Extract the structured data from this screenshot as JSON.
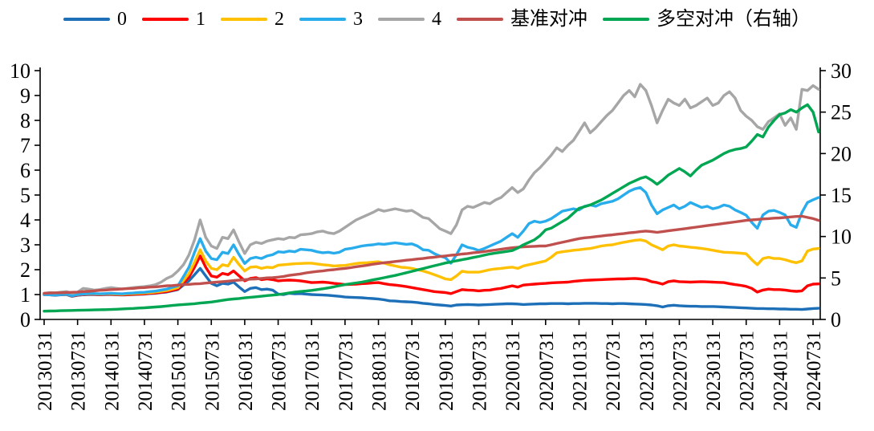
{
  "page": {
    "background": "#FFFFFF"
  },
  "legend": {
    "items": [
      {
        "label": "0",
        "color": "#1D70B8"
      },
      {
        "label": "1",
        "color": "#FF0000"
      },
      {
        "label": "2",
        "color": "#FFC000"
      },
      {
        "label": "3",
        "color": "#29ACEC"
      },
      {
        "label": "4",
        "color": "#A6A6A6"
      },
      {
        "label": "基准对冲",
        "color": "#C0504D"
      },
      {
        "label": "多空对冲（右轴）",
        "color": "#00A651"
      }
    ]
  },
  "chart_data": {
    "type": "line",
    "title": "",
    "xlabel": "",
    "ylabel": "",
    "grid": false,
    "legend_position": "top-center",
    "x_start": "2013-01",
    "x_end": "2024-08",
    "x_frequency": "monthly",
    "x_tick_labels": [
      "20130131",
      "20130731",
      "20140131",
      "20140731",
      "20150131",
      "20150731",
      "20160131",
      "20160731",
      "20170131",
      "20170731",
      "20180131",
      "20180731",
      "20190131",
      "20190731",
      "20200131",
      "20200731",
      "20210131",
      "20210731",
      "20220131",
      "20220731",
      "20230131",
      "20230731",
      "20240131",
      "20240731"
    ],
    "left_axis": {
      "min": 0,
      "max": 10,
      "ticks": [
        0,
        1,
        2,
        3,
        4,
        5,
        6,
        7,
        8,
        9,
        10
      ]
    },
    "right_axis": {
      "min": 0,
      "max": 30,
      "ticks": [
        0,
        5,
        10,
        15,
        20,
        25,
        30
      ]
    },
    "series": [
      {
        "name": "0",
        "axis": "left",
        "color": "#1D70B8",
        "values": [
          1.0,
          0.99,
          0.97,
          0.99,
          1.0,
          0.93,
          0.97,
          0.99,
          1.0,
          1.0,
          0.99,
          1.0,
          1.0,
          0.99,
          0.98,
          0.99,
          1.0,
          1.01,
          1.02,
          1.04,
          1.05,
          1.08,
          1.1,
          1.15,
          1.2,
          1.38,
          1.55,
          1.8,
          2.05,
          1.75,
          1.45,
          1.35,
          1.45,
          1.42,
          1.5,
          1.3,
          1.12,
          1.25,
          1.28,
          1.2,
          1.22,
          1.18,
          1.02,
          1.0,
          1.05,
          1.03,
          1.04,
          1.02,
          1.0,
          0.99,
          0.98,
          0.97,
          0.95,
          0.93,
          0.9,
          0.89,
          0.88,
          0.87,
          0.85,
          0.84,
          0.82,
          0.79,
          0.75,
          0.74,
          0.72,
          0.71,
          0.7,
          0.68,
          0.65,
          0.63,
          0.6,
          0.58,
          0.56,
          0.54,
          0.58,
          0.59,
          0.6,
          0.59,
          0.58,
          0.59,
          0.6,
          0.61,
          0.62,
          0.63,
          0.63,
          0.62,
          0.6,
          0.61,
          0.62,
          0.63,
          0.63,
          0.64,
          0.64,
          0.64,
          0.63,
          0.64,
          0.64,
          0.65,
          0.65,
          0.65,
          0.64,
          0.64,
          0.63,
          0.64,
          0.64,
          0.63,
          0.62,
          0.61,
          0.6,
          0.58,
          0.55,
          0.5,
          0.55,
          0.57,
          0.55,
          0.54,
          0.53,
          0.53,
          0.52,
          0.52,
          0.52,
          0.51,
          0.5,
          0.49,
          0.48,
          0.47,
          0.46,
          0.45,
          0.44,
          0.44,
          0.43,
          0.43,
          0.42,
          0.42,
          0.41,
          0.41,
          0.4,
          0.42,
          0.44,
          0.45
        ]
      },
      {
        "name": "1",
        "axis": "left",
        "color": "#FF0000",
        "values": [
          1.0,
          0.99,
          0.98,
          1.0,
          1.01,
          0.94,
          0.98,
          1.0,
          1.02,
          1.01,
          1.0,
          1.01,
          1.01,
          1.0,
          0.99,
          1.0,
          1.01,
          1.02,
          1.03,
          1.05,
          1.06,
          1.09,
          1.12,
          1.17,
          1.22,
          1.46,
          1.7,
          2.1,
          2.55,
          2.1,
          1.75,
          1.7,
          1.85,
          1.8,
          1.95,
          1.75,
          1.55,
          1.65,
          1.68,
          1.6,
          1.63,
          1.6,
          1.55,
          1.57,
          1.58,
          1.57,
          1.55,
          1.52,
          1.48,
          1.49,
          1.5,
          1.48,
          1.45,
          1.43,
          1.4,
          1.41,
          1.42,
          1.44,
          1.45,
          1.47,
          1.48,
          1.44,
          1.4,
          1.38,
          1.35,
          1.32,
          1.28,
          1.24,
          1.2,
          1.16,
          1.12,
          1.1,
          1.08,
          1.04,
          1.12,
          1.2,
          1.18,
          1.17,
          1.15,
          1.17,
          1.18,
          1.22,
          1.25,
          1.3,
          1.35,
          1.3,
          1.38,
          1.4,
          1.42,
          1.44,
          1.45,
          1.47,
          1.48,
          1.49,
          1.5,
          1.53,
          1.55,
          1.57,
          1.58,
          1.59,
          1.6,
          1.61,
          1.62,
          1.63,
          1.63,
          1.64,
          1.65,
          1.63,
          1.6,
          1.52,
          1.48,
          1.42,
          1.52,
          1.55,
          1.52,
          1.51,
          1.5,
          1.51,
          1.52,
          1.51,
          1.5,
          1.49,
          1.48,
          1.44,
          1.4,
          1.37,
          1.33,
          1.25,
          1.1,
          1.18,
          1.22,
          1.2,
          1.2,
          1.18,
          1.15,
          1.13,
          1.15,
          1.35,
          1.42,
          1.43
        ]
      },
      {
        "name": "2",
        "axis": "left",
        "color": "#FFC000",
        "values": [
          1.0,
          1.0,
          0.99,
          1.01,
          1.02,
          0.96,
          1.0,
          1.02,
          1.03,
          1.03,
          1.02,
          1.03,
          1.03,
          1.02,
          1.01,
          1.03,
          1.04,
          1.05,
          1.06,
          1.08,
          1.1,
          1.13,
          1.16,
          1.22,
          1.28,
          1.56,
          1.85,
          2.3,
          2.8,
          2.35,
          2.05,
          2.0,
          2.2,
          2.15,
          2.5,
          2.2,
          1.95,
          2.1,
          2.12,
          2.05,
          2.1,
          2.08,
          2.18,
          2.2,
          2.22,
          2.24,
          2.25,
          2.26,
          2.26,
          2.23,
          2.2,
          2.18,
          2.15,
          2.16,
          2.17,
          2.21,
          2.25,
          2.27,
          2.28,
          2.3,
          2.32,
          2.26,
          2.2,
          2.15,
          2.1,
          2.08,
          2.05,
          2.0,
          1.95,
          1.88,
          1.8,
          1.72,
          1.63,
          1.6,
          1.75,
          1.94,
          1.9,
          1.9,
          1.9,
          1.95,
          2.0,
          2.03,
          2.05,
          2.08,
          2.1,
          2.05,
          2.15,
          2.2,
          2.25,
          2.3,
          2.35,
          2.5,
          2.68,
          2.72,
          2.75,
          2.78,
          2.8,
          2.83,
          2.85,
          2.9,
          2.95,
          2.98,
          3.0,
          3.05,
          3.1,
          3.14,
          3.18,
          3.2,
          3.15,
          3.0,
          2.9,
          2.8,
          2.95,
          3.0,
          2.95,
          2.93,
          2.9,
          2.88,
          2.85,
          2.82,
          2.78,
          2.74,
          2.7,
          2.69,
          2.68,
          2.66,
          2.64,
          2.4,
          2.2,
          2.45,
          2.5,
          2.45,
          2.45,
          2.4,
          2.33,
          2.28,
          2.35,
          2.75,
          2.83,
          2.85
        ]
      },
      {
        "name": "3",
        "axis": "left",
        "color": "#29ACEC",
        "values": [
          1.0,
          0.99,
          0.98,
          1.0,
          1.02,
          0.95,
          1.0,
          1.02,
          1.04,
          1.04,
          1.03,
          1.04,
          1.05,
          1.04,
          1.03,
          1.05,
          1.06,
          1.08,
          1.09,
          1.12,
          1.14,
          1.18,
          1.22,
          1.29,
          1.35,
          1.72,
          2.1,
          2.7,
          3.25,
          2.75,
          2.45,
          2.4,
          2.7,
          2.65,
          3.0,
          2.6,
          2.25,
          2.45,
          2.5,
          2.45,
          2.55,
          2.6,
          2.72,
          2.7,
          2.75,
          2.72,
          2.82,
          2.8,
          2.78,
          2.72,
          2.68,
          2.7,
          2.66,
          2.7,
          2.82,
          2.85,
          2.9,
          2.95,
          2.98,
          3.0,
          3.04,
          3.02,
          3.05,
          3.08,
          3.05,
          3.02,
          3.04,
          2.95,
          2.8,
          2.78,
          2.65,
          2.55,
          2.48,
          2.26,
          2.6,
          3.0,
          2.9,
          2.85,
          2.77,
          2.85,
          2.95,
          3.05,
          3.15,
          3.3,
          3.45,
          3.3,
          3.55,
          3.85,
          3.95,
          3.9,
          3.95,
          4.05,
          4.2,
          4.35,
          4.4,
          4.45,
          4.4,
          4.55,
          4.6,
          4.55,
          4.65,
          4.7,
          4.75,
          4.85,
          5.0,
          5.15,
          5.25,
          5.3,
          5.1,
          4.6,
          4.25,
          4.4,
          4.5,
          4.6,
          4.45,
          4.55,
          4.7,
          4.6,
          4.5,
          4.55,
          4.45,
          4.5,
          4.6,
          4.55,
          4.4,
          4.3,
          4.19,
          3.9,
          3.66,
          4.2,
          4.35,
          4.38,
          4.3,
          4.2,
          3.8,
          3.7,
          4.3,
          4.7,
          4.81,
          4.9
        ]
      },
      {
        "name": "4",
        "axis": "left",
        "color": "#A6A6A6",
        "values": [
          1.05,
          1.08,
          1.06,
          1.1,
          1.12,
          1.05,
          1.1,
          1.25,
          1.22,
          1.18,
          1.2,
          1.25,
          1.28,
          1.25,
          1.22,
          1.25,
          1.28,
          1.3,
          1.32,
          1.35,
          1.4,
          1.5,
          1.65,
          1.75,
          1.95,
          2.2,
          2.6,
          3.2,
          4.0,
          3.3,
          2.95,
          2.85,
          3.3,
          3.25,
          3.6,
          3.1,
          2.65,
          3.0,
          3.1,
          3.05,
          3.15,
          3.2,
          3.25,
          3.22,
          3.3,
          3.28,
          3.4,
          3.42,
          3.45,
          3.52,
          3.55,
          3.48,
          3.45,
          3.55,
          3.7,
          3.85,
          4.0,
          4.1,
          4.2,
          4.3,
          4.42,
          4.35,
          4.4,
          4.45,
          4.4,
          4.35,
          4.38,
          4.25,
          4.1,
          4.05,
          3.85,
          3.65,
          3.55,
          3.45,
          3.8,
          4.4,
          4.55,
          4.5,
          4.6,
          4.7,
          4.65,
          4.8,
          4.9,
          5.1,
          5.3,
          5.1,
          5.25,
          5.6,
          5.9,
          6.1,
          6.35,
          6.6,
          6.9,
          6.75,
          7.0,
          7.2,
          7.55,
          7.9,
          7.5,
          7.7,
          7.95,
          8.2,
          8.4,
          8.7,
          9.0,
          9.2,
          8.95,
          9.45,
          9.2,
          8.6,
          7.9,
          8.4,
          8.85,
          8.7,
          8.6,
          8.85,
          8.5,
          8.6,
          8.75,
          8.9,
          8.6,
          8.7,
          9.0,
          9.15,
          8.9,
          8.4,
          8.17,
          8.0,
          7.75,
          7.64,
          7.95,
          8.1,
          8.26,
          7.8,
          8.1,
          7.64,
          9.25,
          9.2,
          9.4,
          9.25
        ]
      },
      {
        "name": "基准对冲",
        "axis": "left",
        "color": "#C0504D",
        "values": [
          1.05,
          1.06,
          1.07,
          1.07,
          1.08,
          1.09,
          1.1,
          1.12,
          1.13,
          1.15,
          1.17,
          1.18,
          1.2,
          1.21,
          1.23,
          1.24,
          1.25,
          1.27,
          1.28,
          1.3,
          1.31,
          1.33,
          1.35,
          1.36,
          1.38,
          1.4,
          1.41,
          1.43,
          1.44,
          1.46,
          1.48,
          1.5,
          1.52,
          1.54,
          1.56,
          1.58,
          1.6,
          1.62,
          1.63,
          1.65,
          1.67,
          1.68,
          1.7,
          1.73,
          1.77,
          1.8,
          1.83,
          1.87,
          1.9,
          1.93,
          1.95,
          1.98,
          2.0,
          2.03,
          2.05,
          2.08,
          2.12,
          2.15,
          2.18,
          2.22,
          2.25,
          2.28,
          2.3,
          2.33,
          2.35,
          2.38,
          2.4,
          2.43,
          2.45,
          2.48,
          2.5,
          2.53,
          2.55,
          2.58,
          2.6,
          2.63,
          2.65,
          2.68,
          2.7,
          2.73,
          2.76,
          2.79,
          2.82,
          2.85,
          2.88,
          2.9,
          2.92,
          2.93,
          2.94,
          2.95,
          2.95,
          3.0,
          3.05,
          3.1,
          3.15,
          3.2,
          3.25,
          3.28,
          3.3,
          3.33,
          3.35,
          3.38,
          3.4,
          3.43,
          3.45,
          3.48,
          3.5,
          3.53,
          3.55,
          3.53,
          3.5,
          3.53,
          3.56,
          3.59,
          3.62,
          3.65,
          3.68,
          3.71,
          3.74,
          3.77,
          3.8,
          3.83,
          3.86,
          3.89,
          3.92,
          3.95,
          3.98,
          4.0,
          4.02,
          4.04,
          4.05,
          4.07,
          4.08,
          4.1,
          4.12,
          4.14,
          4.15,
          4.1,
          4.05,
          3.98
        ]
      },
      {
        "name": "多空对冲（右轴）",
        "axis": "right",
        "color": "#00A651",
        "values": [
          1.0,
          1.02,
          1.03,
          1.05,
          1.07,
          1.08,
          1.1,
          1.12,
          1.13,
          1.15,
          1.17,
          1.18,
          1.2,
          1.23,
          1.27,
          1.3,
          1.33,
          1.37,
          1.4,
          1.45,
          1.5,
          1.55,
          1.62,
          1.68,
          1.75,
          1.8,
          1.85,
          1.9,
          1.97,
          2.03,
          2.1,
          2.2,
          2.3,
          2.4,
          2.47,
          2.53,
          2.6,
          2.67,
          2.73,
          2.8,
          2.87,
          2.93,
          3.0,
          3.1,
          3.2,
          3.3,
          3.37,
          3.43,
          3.5,
          3.6,
          3.7,
          3.8,
          3.93,
          4.07,
          4.2,
          4.3,
          4.4,
          4.5,
          4.63,
          4.77,
          4.9,
          5.03,
          5.17,
          5.3,
          5.47,
          5.63,
          5.8,
          5.97,
          6.13,
          6.3,
          6.47,
          6.63,
          6.8,
          6.93,
          7.07,
          7.2,
          7.33,
          7.47,
          7.6,
          7.75,
          7.9,
          8.0,
          8.1,
          8.2,
          8.3,
          8.6,
          9.0,
          9.3,
          9.6,
          10.1,
          10.8,
          11.0,
          11.4,
          11.8,
          12.2,
          12.8,
          13.4,
          13.6,
          13.8,
          14.1,
          14.4,
          14.8,
          15.2,
          15.6,
          16.0,
          16.4,
          16.7,
          17.0,
          17.2,
          16.8,
          16.3,
          16.8,
          17.4,
          17.8,
          18.2,
          17.8,
          17.3,
          18.0,
          18.6,
          18.9,
          19.2,
          19.6,
          20.0,
          20.3,
          20.5,
          20.6,
          20.8,
          21.5,
          22.3,
          22.0,
          23.2,
          24.0,
          24.7,
          24.9,
          25.3,
          25.0,
          25.5,
          25.9,
          25.0,
          22.6
        ]
      }
    ]
  }
}
